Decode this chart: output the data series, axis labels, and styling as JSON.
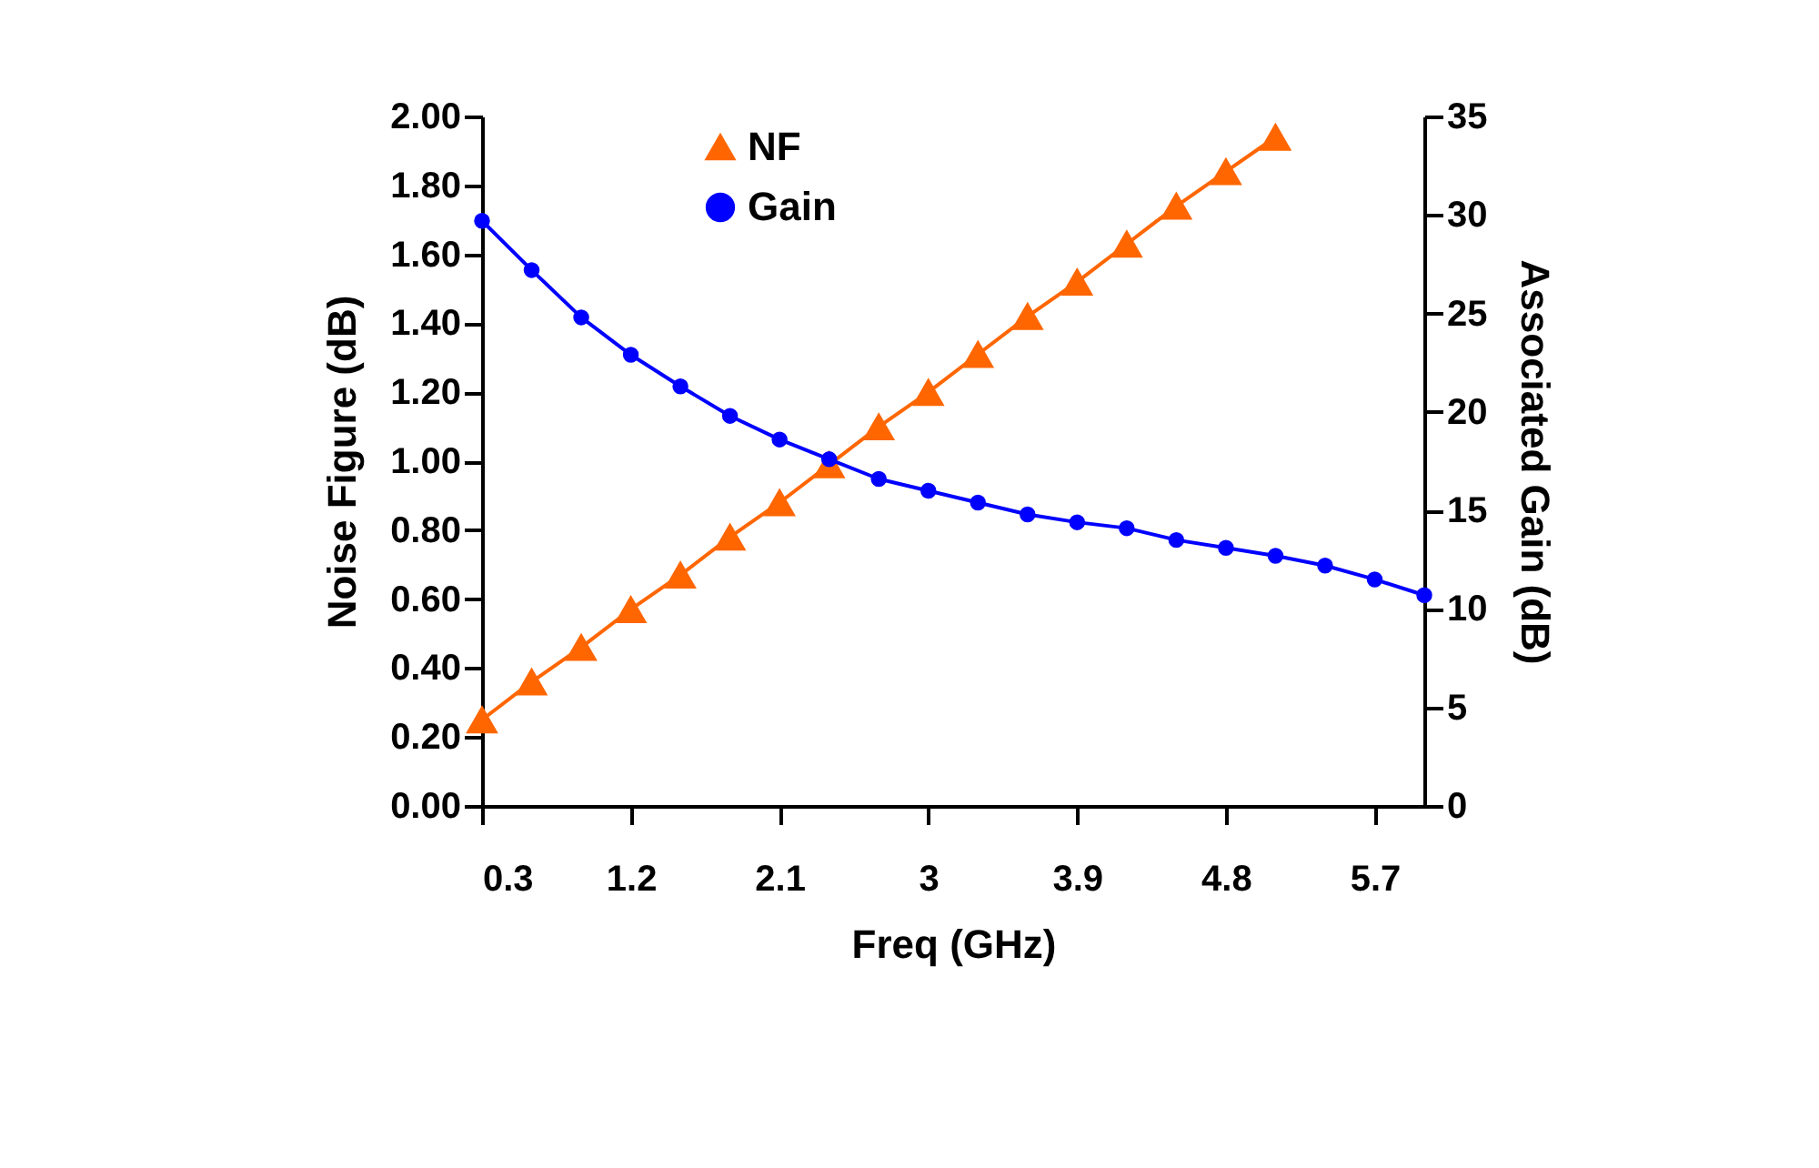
{
  "chart_data": {
    "type": "line",
    "xlabel": "Freq (GHz)",
    "ylabel": "Noise Figure (dB)",
    "y2label": "Associated Gain (dB)",
    "x": [
      0.3,
      0.6,
      0.9,
      1.2,
      1.5,
      1.8,
      2.1,
      2.4,
      2.7,
      3.0,
      3.3,
      3.6,
      3.9,
      4.2,
      4.5,
      4.8,
      5.1,
      5.4,
      5.7,
      6.0
    ],
    "series": [
      {
        "name": "NF",
        "color": "#ff6600",
        "marker": "triangle",
        "values": [
          0.25,
          0.36,
          0.46,
          0.57,
          0.67,
          0.78,
          0.88,
          0.99,
          1.1,
          1.2,
          1.31,
          1.42,
          1.52,
          1.63,
          1.74,
          1.84,
          1.94,
          null,
          null,
          null
        ]
      },
      {
        "name": "Gain",
        "color": "#0000ff",
        "marker": "circle",
        "axis": "y2",
        "values": [
          29.7,
          27.2,
          24.8,
          22.9,
          21.3,
          19.8,
          18.6,
          17.6,
          16.6,
          16.0,
          15.4,
          14.8,
          14.4,
          14.1,
          13.5,
          13.1,
          12.7,
          12.2,
          11.5,
          10.7
        ]
      }
    ],
    "xlim": [
      0.3,
      6.0
    ],
    "xticks": [
      0.3,
      1.2,
      2.1,
      3,
      3.9,
      4.8,
      5.7
    ],
    "ylim": [
      0,
      2
    ],
    "yticks": [
      {
        "value": 0,
        "label": "0.00"
      },
      {
        "value": 0.2,
        "label": "0.20"
      },
      {
        "value": 0.4,
        "label": "0.40"
      },
      {
        "value": 0.6,
        "label": "0.60"
      },
      {
        "value": 0.8,
        "label": "0.80"
      },
      {
        "value": 1,
        "label": "1.00"
      },
      {
        "value": 1.2,
        "label": "1.20"
      },
      {
        "value": 1.4,
        "label": "1.40"
      },
      {
        "value": 1.6,
        "label": "1.60"
      },
      {
        "value": 1.8,
        "label": "1.80"
      },
      {
        "value": 2,
        "label": "2.00"
      }
    ],
    "y2lim": [
      0,
      35
    ],
    "y2ticks": [
      0,
      5,
      10,
      15,
      20,
      25,
      30,
      35
    ],
    "grid": false,
    "legend": "top left"
  }
}
